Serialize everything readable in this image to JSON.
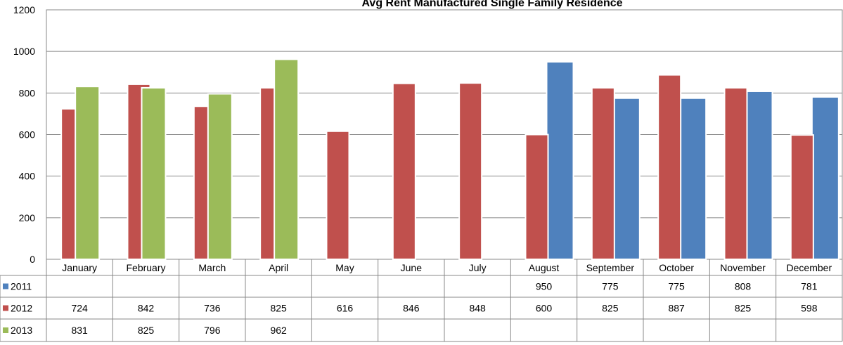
{
  "chart_data": {
    "type": "bar",
    "title": "Avg Rent Manufactured Single Family Residence",
    "categories": [
      "January",
      "February",
      "March",
      "April",
      "May",
      "June",
      "July",
      "August",
      "September",
      "October",
      "November",
      "December"
    ],
    "series": [
      {
        "name": "2011",
        "color": "#4f81bd",
        "values": [
          null,
          null,
          null,
          null,
          null,
          null,
          null,
          950,
          775,
          775,
          808,
          781
        ]
      },
      {
        "name": "2012",
        "color": "#c0504d",
        "values": [
          724,
          842,
          736,
          825,
          616,
          846,
          848,
          600,
          825,
          887,
          825,
          598
        ]
      },
      {
        "name": "2013",
        "color": "#9bbb59",
        "values": [
          831,
          825,
          796,
          962,
          null,
          null,
          null,
          null,
          null,
          null,
          null,
          null
        ]
      }
    ],
    "ylim": [
      0,
      1200
    ],
    "yticks": [
      0,
      200,
      400,
      600,
      800,
      1000,
      1200
    ],
    "grid": true
  }
}
